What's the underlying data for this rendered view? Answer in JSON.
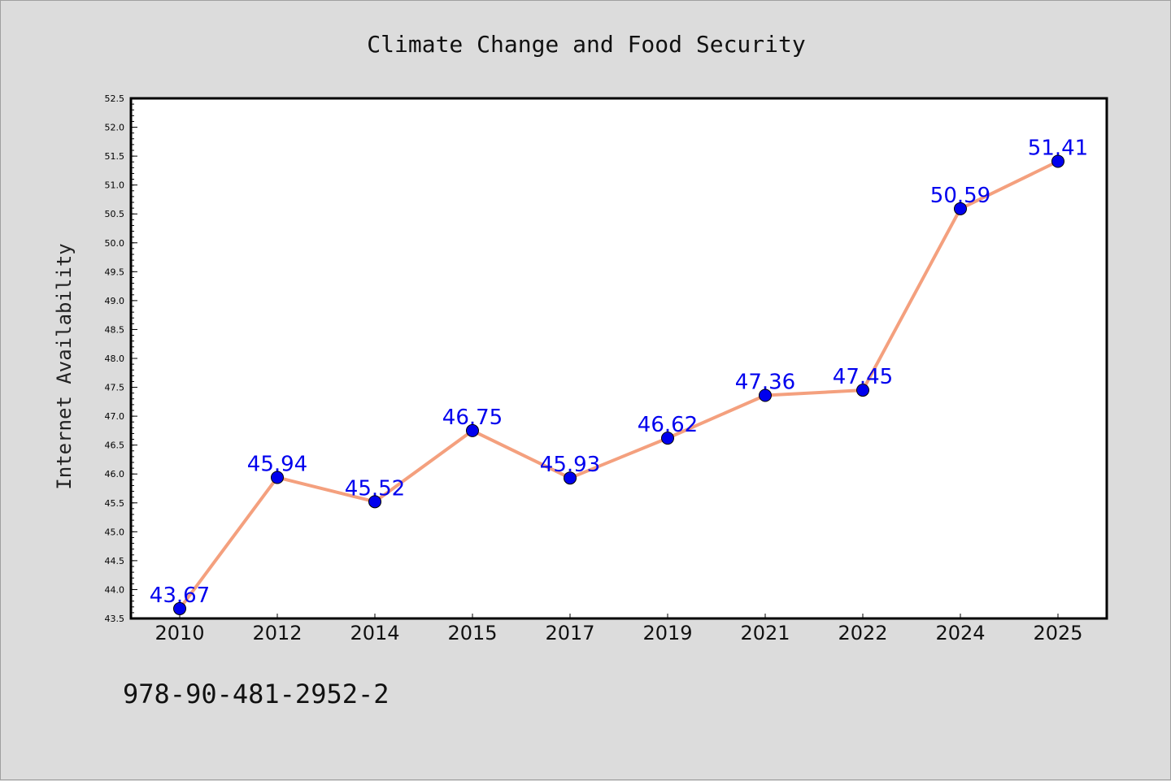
{
  "chart_data": {
    "type": "line",
    "title": "Climate Change and Food Security",
    "xlabel": "",
    "ylabel": "Internet Availability",
    "categories": [
      "2010",
      "2012",
      "2014",
      "2015",
      "2017",
      "2019",
      "2021",
      "2022",
      "2024",
      "2025"
    ],
    "series": [
      {
        "values": [
          43.67,
          45.94,
          45.52,
          46.75,
          45.93,
          46.62,
          47.36,
          47.45,
          50.59,
          51.41
        ],
        "labels": [
          "43.67",
          "45.94",
          "45.52",
          "46.75",
          "45.93",
          "46.62",
          "47.36",
          "47.45",
          "50.59",
          "51.41"
        ],
        "line_color": "#f4a07e",
        "marker_color": "#0000ee",
        "label_color": "#0000ee"
      }
    ],
    "ylim": [
      43.5,
      52.5
    ],
    "yticks": [
      "43.5",
      "44.0",
      "44.5",
      "45.0",
      "45.5",
      "46.0",
      "46.5",
      "47.0",
      "47.5",
      "48.0",
      "48.5",
      "49.0",
      "49.5",
      "50.0",
      "50.5",
      "51.0",
      "51.5",
      "52.0",
      "52.5"
    ],
    "grid": false,
    "legend": "none"
  },
  "footer_text": "978-90-481-2952-2"
}
